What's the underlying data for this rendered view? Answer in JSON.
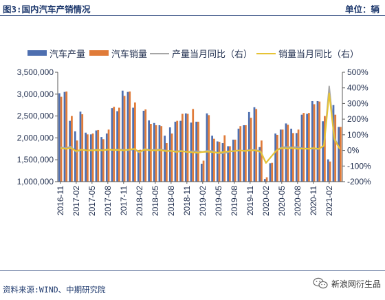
{
  "header": {
    "title": "图3:国内汽车产销情况",
    "unit": "单位：辆"
  },
  "footer": {
    "source": "资料来源:WIND、中期研究院",
    "watermark": "新浪网衍生品"
  },
  "colors": {
    "production": "#4e6fb0",
    "sales": "#e07b39",
    "production_yoy": "#a6a6a6",
    "sales_yoy": "#e6c335"
  },
  "chart_data": {
    "type": "bar",
    "title": "",
    "xlabel": "",
    "ylabel": "",
    "ylim": [
      1000000,
      3500000
    ],
    "y2lim": [
      -200,
      500
    ],
    "yticks": [
      "3,500,000",
      "3,000,000",
      "2,500,000",
      "2,000,000",
      "1,500,000",
      "1,000,000"
    ],
    "y2ticks": [
      "500%",
      "400%",
      "300%",
      "200%",
      "100%",
      "0%",
      "-100%",
      "-200%"
    ],
    "legend_position": "top",
    "grid": false,
    "x_tick_labels": [
      "2016-11",
      "2017-02",
      "2017-05",
      "2017-08",
      "2017-11",
      "2018-02",
      "2018-05",
      "2018-08",
      "2018-11",
      "2019-02",
      "2019-05",
      "2019-08",
      "2019-11",
      "2020-02",
      "2020-05",
      "2020-08",
      "2020-11",
      "2021-02"
    ],
    "x_tick_every": 3,
    "categories": [
      "2016-11",
      "2016-12",
      "2017-01",
      "2017-02",
      "2017-03",
      "2017-04",
      "2017-05",
      "2017-06",
      "2017-07",
      "2017-08",
      "2017-09",
      "2017-10",
      "2017-11",
      "2017-12",
      "2018-01",
      "2018-02",
      "2018-03",
      "2018-04",
      "2018-05",
      "2018-06",
      "2018-07",
      "2018-08",
      "2018-09",
      "2018-10",
      "2018-11",
      "2018-12",
      "2019-01",
      "2019-02",
      "2019-03",
      "2019-04",
      "2019-05",
      "2019-06",
      "2019-07",
      "2019-08",
      "2019-09",
      "2019-10",
      "2019-11",
      "2019-12",
      "2020-01",
      "2020-02",
      "2020-03",
      "2020-04",
      "2020-05",
      "2020-06",
      "2020-07",
      "2020-08",
      "2020-09",
      "2020-10",
      "2020-11",
      "2020-12",
      "2021-01",
      "2021-02",
      "2021-03",
      "2021-04"
    ],
    "series": [
      {
        "name": "汽车产量",
        "kind": "bar",
        "axis": "left",
        "values": [
          3020000,
          3050000,
          2390000,
          2150000,
          2600000,
          2120000,
          2080000,
          2170000,
          2020000,
          2100000,
          2680000,
          2610000,
          3080000,
          3050000,
          2690000,
          1720000,
          2620000,
          2400000,
          2340000,
          2290000,
          2050000,
          2240000,
          2370000,
          2390000,
          2560000,
          2350000,
          2370000,
          1410000,
          2560000,
          2050000,
          1920000,
          1880000,
          1810000,
          1960000,
          2210000,
          2290000,
          2590000,
          2700000,
          1790000,
          1060000,
          1420000,
          2100000,
          2190000,
          2330000,
          2210000,
          2110000,
          2530000,
          2550000,
          2840000,
          2840000,
          2380000,
          1510000,
          2750000,
          2250000
        ]
      },
      {
        "name": "汽车销量",
        "kind": "bar",
        "axis": "left",
        "values": [
          2940000,
          3060000,
          2500000,
          1940000,
          2540000,
          2080000,
          2100000,
          2180000,
          1970000,
          2190000,
          2710000,
          2690000,
          2960000,
          3060000,
          2810000,
          1730000,
          2650000,
          2320000,
          2290000,
          2270000,
          1880000,
          2100000,
          2390000,
          2550000,
          2550000,
          2660000,
          2370000,
          1480000,
          2520000,
          1980000,
          1910000,
          2060000,
          1810000,
          1960000,
          2270000,
          2290000,
          2460000,
          2660000,
          1940000,
          1100000,
          1430000,
          2070000,
          2190000,
          2300000,
          2110000,
          2190000,
          2570000,
          2570000,
          2770000,
          2830000,
          2500000,
          1460000,
          2530000,
          2250000
        ]
      },
      {
        "name": "产量当月同比（右）",
        "kind": "line",
        "axis": "right",
        "values": [
          20,
          15,
          25,
          -10,
          5,
          0,
          3,
          4,
          2,
          5,
          3,
          6,
          5,
          0,
          8,
          -15,
          10,
          2,
          5,
          6,
          0,
          -5,
          -5,
          -2,
          -10,
          -5,
          -5,
          -10,
          -1,
          -5,
          -20,
          -18,
          -10,
          -2,
          0,
          -2,
          3,
          3,
          -5,
          -80,
          -40,
          0,
          20,
          22,
          20,
          22,
          13,
          12,
          10,
          8,
          30,
          410,
          80,
          10
        ]
      },
      {
        "name": "销量当月同比（右）",
        "kind": "line",
        "axis": "right",
        "values": [
          15,
          10,
          15,
          -5,
          5,
          0,
          0,
          2,
          0,
          5,
          3,
          2,
          0,
          5,
          10,
          -10,
          5,
          0,
          0,
          2,
          -5,
          -3,
          -10,
          -5,
          -10,
          -12,
          -15,
          -10,
          -8,
          -12,
          -15,
          -10,
          -6,
          -5,
          0,
          -4,
          0,
          0,
          -10,
          -80,
          -40,
          0,
          15,
          12,
          15,
          10,
          12,
          10,
          15,
          10,
          30,
          365,
          70,
          10
        ]
      }
    ]
  }
}
